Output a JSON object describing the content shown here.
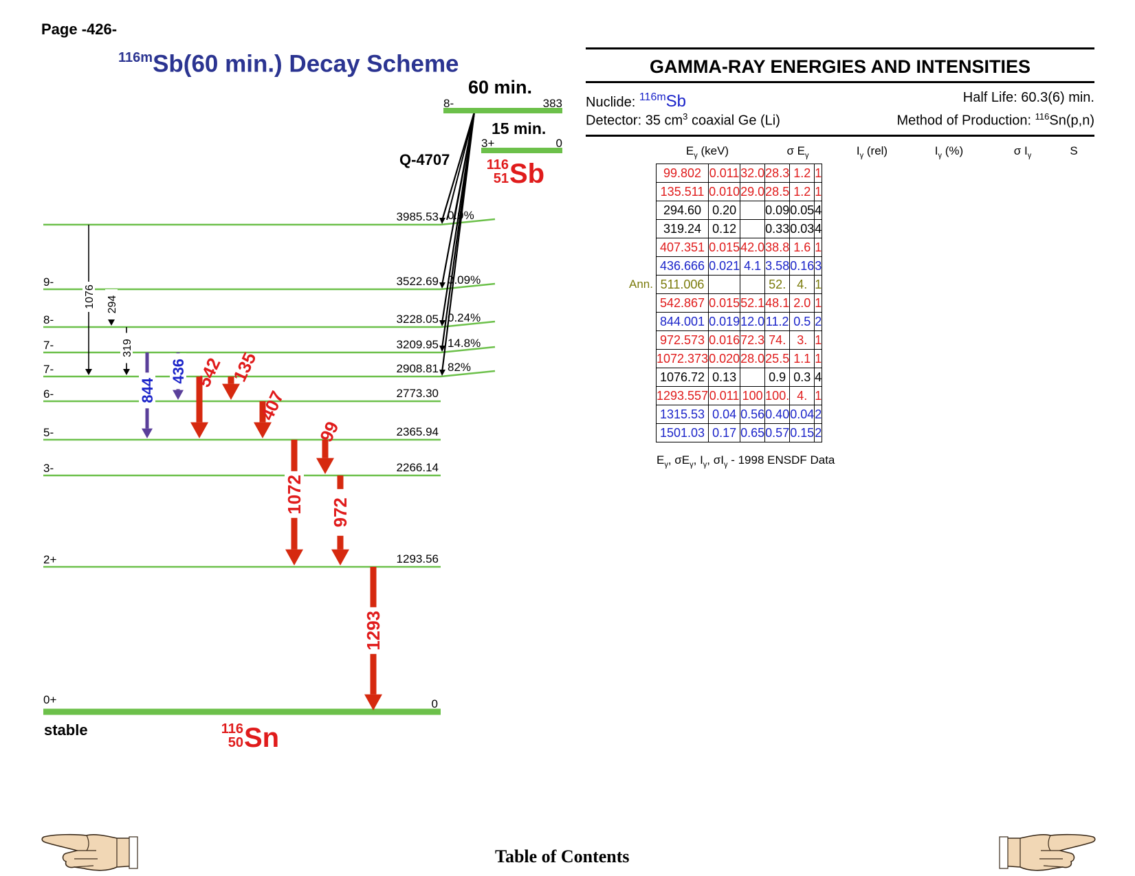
{
  "page": {
    "number_label": "Page -426-"
  },
  "scheme": {
    "title_mass": "116m",
    "title_main": "Sb(60 min.) Decay Scheme",
    "parent": {
      "halflife": "60 min.",
      "spin": "8-",
      "energy": "383",
      "q_value": "Q-4707",
      "symbol": "Sb",
      "mass": "116",
      "z": "51"
    },
    "ground_parent": {
      "halflife": "15 min.",
      "spin": "3+",
      "energy": "0"
    },
    "daughter": {
      "symbol": "Sn",
      "mass": "116",
      "z": "50",
      "stable_label": "stable"
    },
    "levels": [
      {
        "energy": "3985.53",
        "spin": "",
        "feed": "0.9%"
      },
      {
        "energy": "3522.69",
        "spin": "9-",
        "feed": "0.09%"
      },
      {
        "energy": "3228.05",
        "spin": "8-",
        "feed": "0.24%"
      },
      {
        "energy": "3209.95",
        "spin": "7-",
        "feed": "14.8%"
      },
      {
        "energy": "2908.81",
        "spin": "7-",
        "feed": "82%"
      },
      {
        "energy": "2773.30",
        "spin": "6-",
        "feed": ""
      },
      {
        "energy": "2365.94",
        "spin": "5-",
        "feed": ""
      },
      {
        "energy": "2266.14",
        "spin": "3-",
        "feed": ""
      },
      {
        "energy": "1293.56",
        "spin": "2+",
        "feed": ""
      },
      {
        "energy": "0",
        "spin": "0+",
        "feed": ""
      }
    ],
    "gammas": [
      {
        "label": "1076",
        "from": "3985.53",
        "to": "2908.81",
        "style": "thin"
      },
      {
        "label": "294",
        "from": "3522.69",
        "to": "3228.05",
        "style": "thin"
      },
      {
        "label": "319",
        "from": "3228.05",
        "to": "2908.81",
        "style": "thin"
      },
      {
        "label": "844",
        "from": "3209.95",
        "to": "2365.94",
        "style": "purple"
      },
      {
        "label": "436",
        "from": "3209.95",
        "to": "2773.30",
        "style": "purple"
      },
      {
        "label": "542",
        "from": "2908.81",
        "to": "2365.94",
        "style": "red"
      },
      {
        "label": "135",
        "from": "2908.81",
        "to": "2773.30",
        "style": "red"
      },
      {
        "label": "407",
        "from": "2773.30",
        "to": "2365.94",
        "style": "red"
      },
      {
        "label": "99",
        "from": "2365.94",
        "to": "2266.14",
        "style": "red"
      },
      {
        "label": "1072",
        "from": "2365.94",
        "to": "1293.56",
        "style": "red"
      },
      {
        "label": "972",
        "from": "2266.14",
        "to": "1293.56",
        "style": "red"
      },
      {
        "label": "1293",
        "from": "1293.56",
        "to": "0",
        "style": "red"
      }
    ]
  },
  "gamma_table": {
    "title": "GAMMA-RAY ENERGIES AND INTENSITIES",
    "nuclide_label": "Nuclide:",
    "nuclide_mass": "116m",
    "nuclide_symbol": "Sb",
    "halflife_label": "Half Life: 60.3(6) min.",
    "detector_label": "Detector: 35 cm",
    "detector_sup": "3",
    "detector_rest": " coaxial Ge (Li)",
    "production_label": "Method of Production: ",
    "production_sup": "116",
    "production_rest": "Sn(p,n)",
    "headers": [
      "E",
      "(keV)",
      "σ E",
      "I",
      "(rel)",
      "I",
      "(%)",
      "σ I",
      "S"
    ],
    "rows": [
      {
        "energy": "99.802",
        "s_energy": "0.011",
        "irel": "32.0",
        "ipct": "28.3",
        "s_i": "1.2",
        "s": "1",
        "color": "red",
        "note": ""
      },
      {
        "energy": "135.511",
        "s_energy": "0.010",
        "irel": "29.0",
        "ipct": "28.5",
        "s_i": "1.2",
        "s": "1",
        "color": "red",
        "note": ""
      },
      {
        "energy": "294.60",
        "s_energy": "0.20",
        "irel": "",
        "ipct": "0.09",
        "s_i": "0.05",
        "s": "4",
        "color": "black",
        "note": ""
      },
      {
        "energy": "319.24",
        "s_energy": "0.12",
        "irel": "",
        "ipct": "0.33",
        "s_i": "0.03",
        "s": "4",
        "color": "black",
        "note": ""
      },
      {
        "energy": "407.351",
        "s_energy": "0.015",
        "irel": "42.0",
        "ipct": "38.8",
        "s_i": "1.6",
        "s": "1",
        "color": "red",
        "note": ""
      },
      {
        "energy": "436.666",
        "s_energy": "0.021",
        "irel": "4.1",
        "ipct": "3.58",
        "s_i": "0.16",
        "s": "3",
        "color": "blue",
        "note": ""
      },
      {
        "energy": "511.006",
        "s_energy": "",
        "irel": "",
        "ipct": "52.",
        "s_i": "4.",
        "s": "1",
        "color": "olive",
        "note": "Ann."
      },
      {
        "energy": "542.867",
        "s_energy": "0.015",
        "irel": "52.1",
        "ipct": "48.1",
        "s_i": "2.0",
        "s": "1",
        "color": "red",
        "note": ""
      },
      {
        "energy": "844.001",
        "s_energy": "0.019",
        "irel": "12.0",
        "ipct": "11.2",
        "s_i": "0.5",
        "s": "2",
        "color": "blue",
        "note": ""
      },
      {
        "energy": "972.573",
        "s_energy": "0.016",
        "irel": "72.3",
        "ipct": "74.",
        "s_i": "3.",
        "s": "1",
        "color": "red",
        "note": ""
      },
      {
        "energy": "1072.373",
        "s_energy": "0.020",
        "irel": "28.0",
        "ipct": "25.5",
        "s_i": "1.1",
        "s": "1",
        "color": "red",
        "note": ""
      },
      {
        "energy": "1076.72",
        "s_energy": "0.13",
        "irel": "",
        "ipct": "0.9",
        "s_i": "0.3",
        "s": "4",
        "color": "black",
        "note": ""
      },
      {
        "energy": "1293.557",
        "s_energy": "0.011",
        "irel": "100",
        "ipct": "100.",
        "s_i": "4.",
        "s": "1",
        "color": "red",
        "note": ""
      },
      {
        "energy": "1315.53",
        "s_energy": "0.04",
        "irel": "0.56",
        "ipct": "0.40",
        "s_i": "0.04",
        "s": "2",
        "color": "blue",
        "note": ""
      },
      {
        "energy": "1501.03",
        "s_energy": "0.17",
        "irel": "0.65",
        "ipct": "0.57",
        "s_i": "0.15",
        "s": "2",
        "color": "blue",
        "note": ""
      }
    ],
    "source_note": "1998 ENSDF Data",
    "source_symbols": [
      "E",
      ", σE",
      ", I",
      ", σI",
      " -"
    ]
  },
  "footer": {
    "toc_label": "Table of Contents",
    "prev_icon": "pointing-hand-left-icon",
    "next_icon": "pointing-hand-right-icon"
  },
  "colors": {
    "level_line": "#6cc04a",
    "red_arrow": "#d6290f",
    "purple_arrow": "#5a3f9a",
    "label_red": "#e01b1b",
    "label_blue": "#1a23c9",
    "title_blue": "#2b3491"
  }
}
